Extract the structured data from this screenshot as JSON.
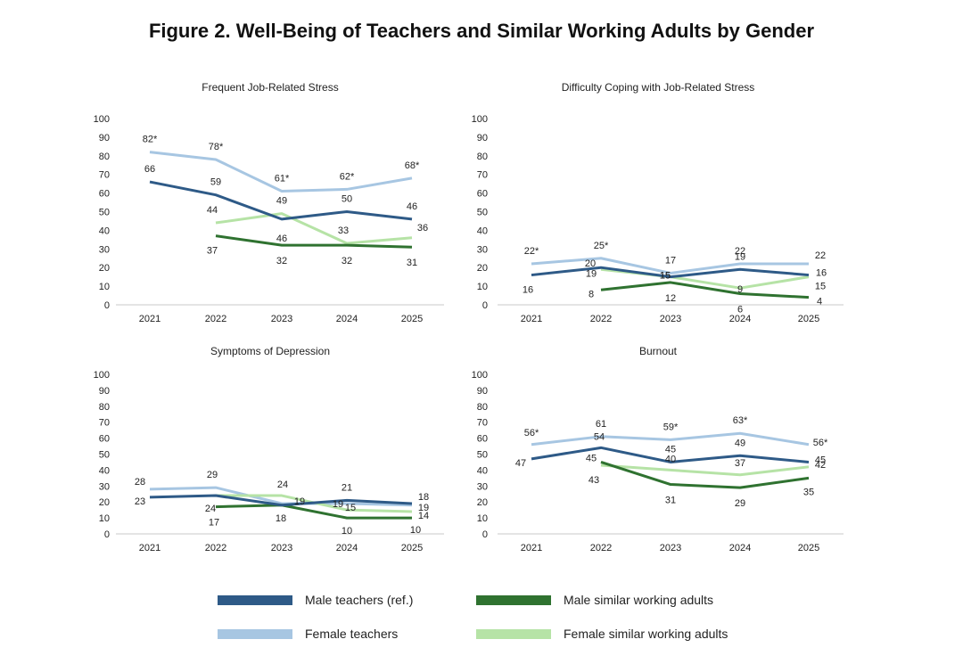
{
  "figure_title": "Figure 2. Well-Being of Teachers and Similar Working Adults by Gender",
  "series_styles": [
    {
      "name": "Male teachers (ref.)",
      "color": "#2e5a87"
    },
    {
      "name": "Male similar working adults",
      "color": "#2f7230"
    },
    {
      "name": "Female teachers",
      "color": "#a7c6e2"
    },
    {
      "name": "Female similar working adults",
      "color": "#b6e3a6"
    }
  ],
  "chart_data": [
    {
      "type": "line",
      "title": "Frequent Job-Related Stress",
      "x": [
        "2021",
        "2022",
        "2023",
        "2024",
        "2025"
      ],
      "ylim": [
        0,
        100
      ],
      "yticks": [
        0,
        10,
        20,
        30,
        40,
        50,
        60,
        70,
        80,
        90,
        100
      ],
      "grid": false,
      "series": [
        {
          "name": "Male teachers (ref.)",
          "values": [
            66,
            59,
            46,
            50,
            46
          ],
          "labels": [
            "66",
            "59",
            "46",
            "50",
            "46"
          ]
        },
        {
          "name": "Male similar working adults",
          "values": [
            null,
            37,
            32,
            32,
            31
          ],
          "labels": [
            "",
            "37",
            "32",
            "32",
            "31"
          ]
        },
        {
          "name": "Female teachers",
          "values": [
            82,
            78,
            61,
            62,
            68
          ],
          "labels": [
            "82*",
            "78*",
            "61*",
            "62*",
            "68*"
          ]
        },
        {
          "name": "Female similar working adults",
          "values": [
            null,
            44,
            49,
            33,
            36
          ],
          "labels": [
            "",
            "44",
            "49",
            "33",
            "36"
          ]
        }
      ]
    },
    {
      "type": "line",
      "title": "Difficulty Coping with Job-Related Stress",
      "x": [
        "2021",
        "2022",
        "2023",
        "2024",
        "2025"
      ],
      "ylim": [
        0,
        100
      ],
      "yticks": [
        0,
        10,
        20,
        30,
        40,
        50,
        60,
        70,
        80,
        90,
        100
      ],
      "grid": false,
      "series": [
        {
          "name": "Male teachers (ref.)",
          "values": [
            16,
            20,
            15,
            19,
            16
          ],
          "labels": [
            "16",
            "20",
            "15",
            "19",
            "16"
          ]
        },
        {
          "name": "Male similar working adults",
          "values": [
            null,
            8,
            12,
            6,
            4
          ],
          "labels": [
            "",
            "8",
            "12",
            "6",
            "4"
          ]
        },
        {
          "name": "Female teachers",
          "values": [
            22,
            25,
            17,
            22,
            22
          ],
          "labels": [
            "22*",
            "25*",
            "17",
            "22",
            "22"
          ]
        },
        {
          "name": "Female similar working adults",
          "values": [
            null,
            19,
            15,
            9,
            15
          ],
          "labels": [
            "",
            "19",
            "15",
            "9",
            "15"
          ]
        }
      ]
    },
    {
      "type": "line",
      "title": "Symptoms of Depression",
      "x": [
        "2021",
        "2022",
        "2023",
        "2024",
        "2025"
      ],
      "ylim": [
        0,
        100
      ],
      "yticks": [
        0,
        10,
        20,
        30,
        40,
        50,
        60,
        70,
        80,
        90,
        100
      ],
      "grid": false,
      "series": [
        {
          "name": "Male teachers (ref.)",
          "values": [
            23,
            24,
            18,
            21,
            19
          ],
          "labels": [
            "23",
            "24",
            "18",
            "21",
            "19"
          ]
        },
        {
          "name": "Male similar working adults",
          "values": [
            null,
            17,
            18,
            10,
            10
          ],
          "labels": [
            "",
            "17",
            "",
            "10",
            "10"
          ]
        },
        {
          "name": "Female teachers",
          "values": [
            28,
            29,
            19,
            19,
            18
          ],
          "labels": [
            "28",
            "29",
            "19",
            "19",
            "18"
          ]
        },
        {
          "name": "Female similar working adults",
          "values": [
            null,
            24,
            24,
            15,
            14
          ],
          "labels": [
            "",
            "",
            "24",
            "15",
            "14"
          ]
        }
      ]
    },
    {
      "type": "line",
      "title": "Burnout",
      "x": [
        "2021",
        "2022",
        "2023",
        "2024",
        "2025"
      ],
      "ylim": [
        0,
        100
      ],
      "yticks": [
        0,
        10,
        20,
        30,
        40,
        50,
        60,
        70,
        80,
        90,
        100
      ],
      "grid": false,
      "series": [
        {
          "name": "Male teachers (ref.)",
          "values": [
            47,
            54,
            45,
            49,
            45
          ],
          "labels": [
            "47",
            "54",
            "45",
            "49",
            "45"
          ]
        },
        {
          "name": "Male similar working adults",
          "values": [
            null,
            45,
            31,
            29,
            35
          ],
          "labels": [
            "",
            "45",
            "31",
            "29",
            "35"
          ]
        },
        {
          "name": "Female teachers",
          "values": [
            56,
            61,
            59,
            63,
            56
          ],
          "labels": [
            "56*",
            "61",
            "59*",
            "63*",
            "56*"
          ]
        },
        {
          "name": "Female similar working adults",
          "values": [
            null,
            43,
            40,
            37,
            42
          ],
          "labels": [
            "",
            "43",
            "40",
            "37",
            "42"
          ]
        }
      ]
    }
  ]
}
